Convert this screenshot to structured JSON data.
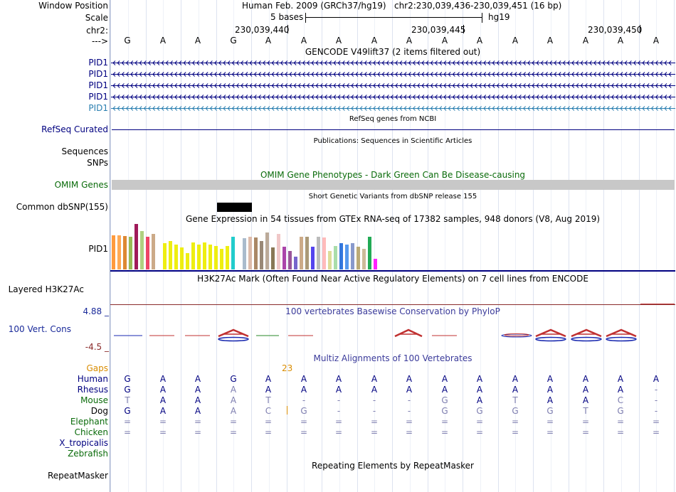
{
  "header": {
    "window_position_label": "Window Position",
    "scale_label": "Scale",
    "chr_label": "chr2:",
    "strand_label": "--->",
    "assembly": "Human Feb. 2009 (GRCh37/hg19)",
    "position": "chr2:230,039,436-230,039,451 (16 bp)",
    "scale_text": "5 bases",
    "scale_db": "hg19",
    "ticks": [
      "230,039,440",
      "230,039,445",
      "230,039,450"
    ]
  },
  "sequence": [
    "G",
    "A",
    "A",
    "G",
    "A",
    "A",
    "A",
    "A",
    "A",
    "A",
    "A",
    "A",
    "A",
    "A",
    "A",
    "A"
  ],
  "gencode": {
    "title": "GENCODE V49lift37 (2 items filtered out)",
    "rows": [
      {
        "label": "PID1",
        "color": "#000080"
      },
      {
        "label": "PID1",
        "color": "#000080"
      },
      {
        "label": "PID1",
        "color": "#000080"
      },
      {
        "label": "PID1",
        "color": "#000080"
      },
      {
        "label": "PID1",
        "color": "#2a7fb0"
      }
    ]
  },
  "refseq": {
    "title": "RefSeq genes from NCBI",
    "label": "RefSeq Curated",
    "color": "#000080"
  },
  "publications": {
    "title": "Publications: Sequences in Scientific Articles",
    "label1": "Sequences",
    "label2": "SNPs"
  },
  "omim": {
    "title": "OMIM Gene Phenotypes - Dark Green Can Be Disease-causing",
    "label": "OMIM Genes",
    "bar_color": "#c8c8c8"
  },
  "dbsnp": {
    "title": "Short Genetic Variants from dbSNP release 155",
    "label": "Common dbSNP(155)"
  },
  "gtex": {
    "title": "Gene Expression in 54 tissues from GTEx RNA-seq of 17382 samples, 948 donors (V8, Aug 2019)",
    "label": "PID1",
    "bars": [
      {
        "v": 0.75,
        "c": "#ff9a3c"
      },
      {
        "v": 0.75,
        "c": "#ffaa55"
      },
      {
        "v": 0.74,
        "c": "#dd8833"
      },
      {
        "v": 0.72,
        "c": "#99bb55"
      },
      {
        "v": 1.0,
        "c": "#a01a5a"
      },
      {
        "v": 0.85,
        "c": "#b0d080"
      },
      {
        "v": 0.72,
        "c": "#ee4466"
      },
      {
        "v": 0.78,
        "c": "#ccaa88"
      },
      {
        "v": 0.0,
        "c": "#ffffff"
      },
      {
        "v": 0.58,
        "c": "#eeee11"
      },
      {
        "v": 0.62,
        "c": "#eeee11"
      },
      {
        "v": 0.55,
        "c": "#eeee11"
      },
      {
        "v": 0.48,
        "c": "#eeee11"
      },
      {
        "v": 0.36,
        "c": "#eeee11"
      },
      {
        "v": 0.6,
        "c": "#eeee11"
      },
      {
        "v": 0.55,
        "c": "#eeee11"
      },
      {
        "v": 0.6,
        "c": "#eeee11"
      },
      {
        "v": 0.55,
        "c": "#eeee11"
      },
      {
        "v": 0.52,
        "c": "#eeee11"
      },
      {
        "v": 0.45,
        "c": "#eeee11"
      },
      {
        "v": 0.52,
        "c": "#eeee11"
      },
      {
        "v": 0.72,
        "c": "#22cccc"
      },
      {
        "v": 0.0,
        "c": "#ffffff"
      },
      {
        "v": 0.68,
        "c": "#aabbcc"
      },
      {
        "v": 0.72,
        "c": "#ddbbaa"
      },
      {
        "v": 0.7,
        "c": "#aa8866"
      },
      {
        "v": 0.62,
        "c": "#998877"
      },
      {
        "v": 0.82,
        "c": "#bbaa99"
      },
      {
        "v": 0.48,
        "c": "#887755"
      },
      {
        "v": 0.78,
        "c": "#f0c8c8"
      },
      {
        "v": 0.5,
        "c": "#aa44aa"
      },
      {
        "v": 0.4,
        "c": "#995599"
      },
      {
        "v": 0.28,
        "c": "#7766cc"
      },
      {
        "v": 0.72,
        "c": "#ccaa88"
      },
      {
        "v": 0.72,
        "c": "#aa9977"
      },
      {
        "v": 0.5,
        "c": "#5544ee"
      },
      {
        "v": 0.72,
        "c": "#bbbbbb"
      },
      {
        "v": 0.7,
        "c": "#ffbbbb"
      },
      {
        "v": 0.4,
        "c": "#dddd99"
      },
      {
        "v": 0.52,
        "c": "#aaddaa"
      },
      {
        "v": 0.58,
        "c": "#3377dd"
      },
      {
        "v": 0.55,
        "c": "#5599ee"
      },
      {
        "v": 0.58,
        "c": "#8899cc"
      },
      {
        "v": 0.5,
        "c": "#bbaa77"
      },
      {
        "v": 0.45,
        "c": "#ccbb99"
      },
      {
        "v": 0.72,
        "c": "#22aa55"
      },
      {
        "v": 0.24,
        "c": "#ff22ff"
      }
    ]
  },
  "h3k27": {
    "title": "H3K27Ac Mark (Often Found Near Active Regulatory Elements) on 7 cell lines from ENCODE",
    "label": "Layered H3K27Ac"
  },
  "phylop": {
    "title": "100 vertebrates Basewise Conservation by PhyloP",
    "label": "100 Vert. Cons",
    "max": "4.88 _",
    "min": "-4.5 _"
  },
  "multiz": {
    "title": "Multiz Alignments of 100 Vertebrates",
    "gaps_label": "Gaps",
    "gap_count": "23",
    "species": [
      {
        "name": "Human",
        "cls": "navy",
        "bases": [
          "G",
          "A",
          "A",
          "G",
          "A",
          "A",
          "A",
          "A",
          "A",
          "A",
          "A",
          "A",
          "A",
          "A",
          "A",
          "A"
        ],
        "color": "#000080"
      },
      {
        "name": "Rhesus",
        "cls": "navy",
        "bases": [
          "G",
          "A",
          "A",
          "A",
          "A",
          "A",
          "A",
          "A",
          "A",
          "A",
          "A",
          "A",
          "A",
          "A",
          "A",
          "-"
        ],
        "color": "#000080"
      },
      {
        "name": "Mouse",
        "cls": "dgreen",
        "bases": [
          "T",
          "A",
          "A",
          "A",
          "T",
          "-",
          "-",
          "-",
          "-",
          "G",
          "A",
          "T",
          "A",
          "A",
          "C",
          "-"
        ],
        "color": "#000080"
      },
      {
        "name": "Dog",
        "cls": "",
        "bases": [
          "G",
          "A",
          "A",
          "A",
          "C",
          "G",
          "-",
          "-",
          "-",
          "G",
          "G",
          "G",
          "G",
          "T",
          "G",
          "-"
        ],
        "color": "#000080"
      },
      {
        "name": "Elephant",
        "cls": "dgreen",
        "bases": [
          "=",
          "=",
          "=",
          "=",
          "=",
          "=",
          "=",
          "=",
          "=",
          "=",
          "=",
          "=",
          "=",
          "=",
          "=",
          "="
        ],
        "color": "#7f7fb0"
      },
      {
        "name": "Chicken",
        "cls": "dgreen",
        "bases": [
          "=",
          "=",
          "=",
          "=",
          "=",
          "=",
          "=",
          "=",
          "=",
          "=",
          "=",
          "=",
          "=",
          "=",
          "=",
          "="
        ],
        "color": "#7f7fb0"
      },
      {
        "name": "X_tropicalis",
        "cls": "navy",
        "bases": [
          "",
          "",
          "",
          "",
          "",
          "",
          "",
          "",
          "",
          "",
          "",
          "",
          "",
          "",
          "",
          ""
        ],
        "color": "#000080"
      },
      {
        "name": "Zebrafish",
        "cls": "dgreen",
        "bases": [
          "",
          "",
          "",
          "",
          "",
          "",
          "",
          "",
          "",
          "",
          "",
          "",
          "",
          "",
          "",
          ""
        ],
        "color": "#000080"
      }
    ]
  },
  "repeatmasker": {
    "title": "Repeating Elements by RepeatMasker",
    "label": "RepeatMasker"
  }
}
